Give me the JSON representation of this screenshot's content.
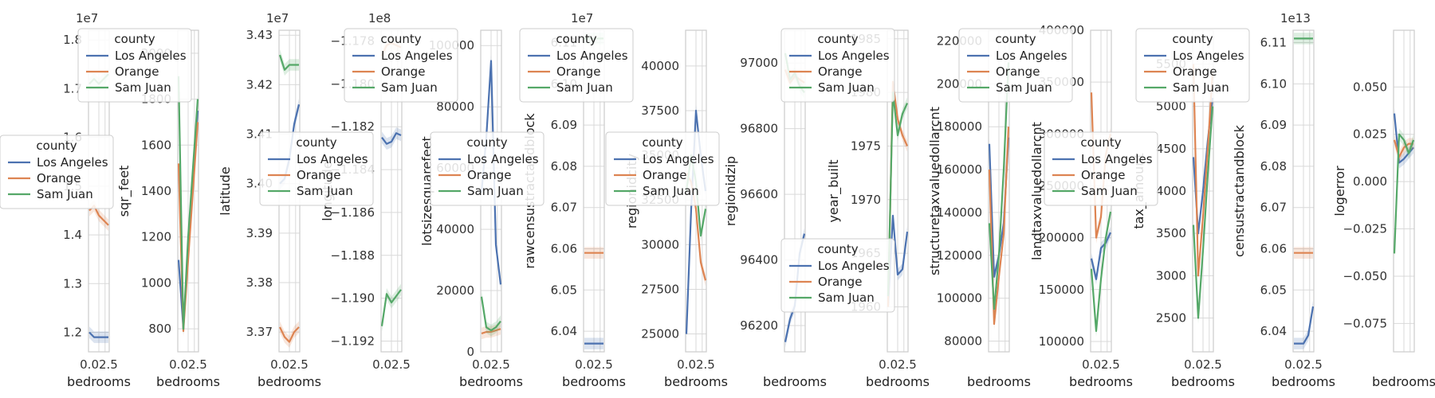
{
  "figure_note": "",
  "colors": {
    "Los Angeles": "#4c72b0",
    "Orange": "#dd8452",
    "Sam Juan": "#55a868",
    "grid": "#d9d9d9",
    "frame": "#cccccc"
  },
  "legend": {
    "title": "county",
    "entries": [
      "Los Angeles",
      "Orange",
      "Sam Juan"
    ]
  },
  "chart_data": [
    {
      "type": "line",
      "ylabel": "",
      "xlabel": "bedrooms",
      "offset": "1e7",
      "ylim": [
        1.16,
        1.82
      ],
      "yticks": [
        "1.2",
        "1.3",
        "1.4",
        "1.5",
        "1.6",
        "1.7",
        "1.8"
      ],
      "yvals": [
        1.2,
        1.3,
        1.4,
        1.5,
        1.6,
        1.7,
        1.8
      ],
      "xticks": "0.02.5",
      "series": [
        {
          "name": "Los Angeles",
          "values": [
            1.2,
            1.19,
            1.19,
            1.19,
            1.19
          ]
        },
        {
          "name": "Orange",
          "values": [
            1.45,
            1.46,
            1.44,
            1.43,
            1.42
          ]
        },
        {
          "name": "Sam Juan",
          "values": [
            1.71,
            1.72,
            1.71,
            1.72,
            1.73
          ]
        }
      ]
    },
    {
      "type": "line",
      "ylabel": "sqr_feet",
      "xlabel": "bedrooms",
      "ylim": [
        700,
        2100
      ],
      "yticks": [
        "800",
        "1000",
        "1200",
        "1400",
        "1600",
        "1800",
        "2000"
      ],
      "yvals": [
        800,
        1000,
        1200,
        1400,
        1600,
        1800,
        2000
      ],
      "xticks": "0.02.5",
      "series": [
        {
          "name": "Los Angeles",
          "values": [
            1100,
            800,
            1150,
            1450,
            1750
          ]
        },
        {
          "name": "Orange",
          "values": [
            1520,
            790,
            1100,
            1400,
            1700
          ]
        },
        {
          "name": "Sam Juan",
          "values": [
            1900,
            800,
            1200,
            1500,
            1800
          ]
        }
      ]
    },
    {
      "type": "line",
      "ylabel": "latitude",
      "xlabel": "bedrooms",
      "offset": "1e7",
      "ylim": [
        3.366,
        3.431
      ],
      "yticks": [
        "3.37",
        "3.38",
        "3.39",
        "3.40",
        "3.41",
        "3.42",
        "3.43"
      ],
      "yvals": [
        3.37,
        3.38,
        3.39,
        3.4,
        3.41,
        3.42,
        3.43
      ],
      "xticks": "0.02.5",
      "series": [
        {
          "name": "Los Angeles",
          "values": [
            3.4,
            3.401,
            3.405,
            3.412,
            3.416
          ]
        },
        {
          "name": "Orange",
          "values": [
            3.371,
            3.369,
            3.368,
            3.37,
            3.371
          ]
        },
        {
          "name": "Sam Juan",
          "values": [
            3.426,
            3.423,
            3.424,
            3.424,
            3.424
          ]
        }
      ]
    },
    {
      "type": "line",
      "ylabel": "longitude",
      "xlabel": "",
      "offset": "1e8",
      "ylim": [
        -1.1925,
        -1.1775
      ],
      "yticks": [
        "−1.178",
        "−1.180",
        "−1.182",
        "−1.184",
        "−1.186",
        "−1.188",
        "−1.190",
        "−1.192"
      ],
      "yvals": [
        -1.178,
        -1.18,
        -1.182,
        -1.184,
        -1.186,
        -1.188,
        -1.19,
        -1.192
      ],
      "xticks": "0.02.5",
      "series": [
        {
          "name": "Los Angeles",
          "values": [
            -1.1825,
            -1.1828,
            -1.1827,
            -1.1823,
            -1.1824
          ]
        },
        {
          "name": "Orange",
          "values": [
            -1.1787,
            -1.1782,
            -1.1781,
            -1.1782,
            -1.1783
          ]
        },
        {
          "name": "Sam Juan",
          "values": [
            -1.1913,
            -1.1898,
            -1.1902,
            -1.1899,
            -1.1896
          ]
        }
      ]
    },
    {
      "type": "line",
      "ylabel": "lotsizesquarefeet",
      "xlabel": "bedrooms",
      "ylim": [
        0,
        105000
      ],
      "yticks": [
        "0",
        "20000",
        "40000",
        "60000",
        "80000",
        "100000"
      ],
      "yvals": [
        0,
        20000,
        40000,
        60000,
        80000,
        100000
      ],
      "xticks": "0.02.5",
      "series": [
        {
          "name": "Los Angeles",
          "values": [
            52000,
            70000,
            95000,
            35000,
            22000
          ]
        },
        {
          "name": "Orange",
          "values": [
            6000,
            6500,
            6500,
            7000,
            7500
          ]
        },
        {
          "name": "Sam Juan",
          "values": [
            18000,
            8000,
            7000,
            8000,
            10000
          ]
        }
      ]
    },
    {
      "type": "line",
      "ylabel": "rawcensustractandblock",
      "xlabel": "bedrooms",
      "offset": "1e7",
      "ylim": [
        6.035,
        6.113
      ],
      "yticks": [
        "6.04",
        "6.05",
        "6.06",
        "6.07",
        "6.08",
        "6.09",
        "6.10",
        "6.11"
      ],
      "yvals": [
        6.04,
        6.05,
        6.06,
        6.07,
        6.08,
        6.09,
        6.1,
        6.11
      ],
      "xticks": "0.02.5",
      "series": [
        {
          "name": "Los Angeles",
          "values": [
            6.037,
            6.037,
            6.037,
            6.037,
            6.037
          ]
        },
        {
          "name": "Orange",
          "values": [
            6.059,
            6.059,
            6.059,
            6.059,
            6.059
          ]
        },
        {
          "name": "Sam Juan",
          "values": [
            6.111,
            6.111,
            6.111,
            6.111,
            6.111
          ]
        }
      ]
    },
    {
      "type": "line",
      "ylabel": "regionidcity",
      "xlabel": "bedrooms",
      "ylim": [
        24000,
        42000
      ],
      "yticks": [
        "25000",
        "27500",
        "30000",
        "32500",
        "35000",
        "37500",
        "40000"
      ],
      "yvals": [
        25000,
        27500,
        30000,
        32500,
        35000,
        37500,
        40000
      ],
      "xticks": "0.02.5",
      "series": [
        {
          "name": "Los Angeles",
          "values": [
            25000,
            32000,
            37500,
            35000,
            33000
          ]
        },
        {
          "name": "Orange",
          "values": [
            34000,
            33500,
            32000,
            29000,
            28000
          ]
        },
        {
          "name": "Sam Juan",
          "values": [
            33000,
            35000,
            33500,
            30500,
            32000
          ]
        }
      ]
    },
    {
      "type": "line",
      "ylabel": "regionidzip",
      "xlabel": "bedrooms",
      "ylim": [
        96120,
        97100
      ],
      "yticks": [
        "96200",
        "96400",
        "96600",
        "96800",
        "97000"
      ],
      "yvals": [
        96200,
        96400,
        96600,
        96800,
        97000
      ],
      "xticks": "",
      "series": [
        {
          "name": "Los Angeles",
          "values": [
            96150,
            96220,
            96260,
            96420,
            96480
          ]
        },
        {
          "name": "Orange",
          "values": [
            96980,
            96940,
            96960,
            96950,
            96940
          ]
        },
        {
          "name": "Sam Juan",
          "values": [
            97030,
            96950,
            96970,
            96930,
            96910
          ]
        }
      ]
    },
    {
      "type": "line",
      "ylabel": "year_built",
      "xlabel": "bedrooms",
      "ylim": [
        1955.8,
        1985.8
      ],
      "yticks": [
        "1960",
        "1965",
        "1970",
        "1975",
        "1980",
        "1985"
      ],
      "yvals": [
        1960,
        1965,
        1970,
        1975,
        1980,
        1985
      ],
      "xticks": "0.02.5",
      "series": [
        {
          "name": "Los Angeles",
          "values": [
            1960,
            1968.5,
            1963,
            1963.5,
            1967
          ]
        },
        {
          "name": "Orange",
          "values": [
            1960,
            1981,
            1977.5,
            1976,
            1975
          ]
        },
        {
          "name": "Sam Juan",
          "values": [
            1961,
            1980,
            1976,
            1978,
            1979
          ]
        }
      ]
    },
    {
      "type": "line",
      "ylabel": "structuretaxvaluedollarcnt",
      "xlabel": "bedrooms",
      "ylim": [
        75000,
        225000
      ],
      "yticks": [
        "80000",
        "100000",
        "120000",
        "140000",
        "160000",
        "180000",
        "200000",
        "220000"
      ],
      "yvals": [
        80000,
        100000,
        120000,
        140000,
        160000,
        180000,
        200000,
        220000
      ],
      "xticks": "",
      "series": [
        {
          "name": "Los Angeles",
          "values": [
            172000,
            110000,
            120000,
            135000,
            175000
          ]
        },
        {
          "name": "Orange",
          "values": [
            160000,
            88000,
            110000,
            130000,
            180000
          ]
        },
        {
          "name": "Sam Juan",
          "values": [
            135000,
            95000,
            120000,
            160000,
            210000
          ]
        }
      ]
    },
    {
      "type": "line",
      "ylabel": "landtaxvaluedollarcnt",
      "xlabel": "bedrooms",
      "ylim": [
        90000,
        400000
      ],
      "yticks": [
        "100000",
        "150000",
        "200000",
        "250000",
        "300000",
        "350000",
        "400000"
      ],
      "yvals": [
        100000,
        150000,
        200000,
        250000,
        300000,
        350000,
        400000
      ],
      "xticks": "0.02.5",
      "series": [
        {
          "name": "Los Angeles",
          "values": [
            180000,
            160000,
            190000,
            195000,
            205000
          ]
        },
        {
          "name": "Orange",
          "values": [
            340000,
            200000,
            220000,
            280000,
            300000
          ]
        },
        {
          "name": "Sam Juan",
          "values": [
            170000,
            110000,
            160000,
            200000,
            225000
          ]
        }
      ]
    },
    {
      "type": "line",
      "ylabel": "tax_amount",
      "xlabel": "bedrooms",
      "ylim": [
        2100,
        5900
      ],
      "yticks": [
        "2500",
        "3000",
        "3500",
        "4000",
        "4500",
        "5000",
        "5500"
      ],
      "yvals": [
        2500,
        3000,
        3500,
        4000,
        4500,
        5000,
        5500
      ],
      "xticks": "0.02.5",
      "series": [
        {
          "name": "Los Angeles",
          "values": [
            4400,
            3500,
            4000,
            4600,
            5100
          ]
        },
        {
          "name": "Orange",
          "values": [
            5500,
            3000,
            3700,
            4500,
            5400
          ]
        },
        {
          "name": "Sam Juan",
          "values": [
            3600,
            2500,
            3300,
            4200,
            5000
          ]
        }
      ]
    },
    {
      "type": "line",
      "ylabel": "censustractandblock",
      "xlabel": "bedrooms",
      "offset": "1e13",
      "ylim": [
        6.035,
        6.113
      ],
      "yticks": [
        "6.04",
        "6.05",
        "6.06",
        "6.07",
        "6.08",
        "6.09",
        "6.10",
        "6.11"
      ],
      "yvals": [
        6.04,
        6.05,
        6.06,
        6.07,
        6.08,
        6.09,
        6.1,
        6.11
      ],
      "xticks": "0.02.5",
      "series": [
        {
          "name": "Los Angeles",
          "values": [
            6.037,
            6.037,
            6.037,
            6.039,
            6.046
          ]
        },
        {
          "name": "Orange",
          "values": [
            6.059,
            6.059,
            6.059,
            6.059,
            6.059
          ]
        },
        {
          "name": "Sam Juan",
          "values": [
            6.111,
            6.111,
            6.111,
            6.111,
            6.111
          ]
        }
      ]
    },
    {
      "type": "line",
      "ylabel": "logerror",
      "xlabel": "bedrooms",
      "ylim": [
        -0.09,
        0.08
      ],
      "yticks": [
        "−0.075",
        "−0.050",
        "−0.025",
        "0.000",
        "0.025",
        "0.050"
      ],
      "yvals": [
        -0.075,
        -0.05,
        -0.025,
        0,
        0.025,
        0.05
      ],
      "xticks": "",
      "series": [
        {
          "name": "Los Angeles",
          "values": [
            0.036,
            0.01,
            0.012,
            0.015,
            0.018
          ]
        },
        {
          "name": "Orange",
          "values": [
            0.022,
            0.013,
            0.018,
            0.02,
            0.02
          ]
        },
        {
          "name": "Sam Juan",
          "values": [
            -0.038,
            0.025,
            0.022,
            0.015,
            0.022
          ]
        }
      ]
    }
  ]
}
